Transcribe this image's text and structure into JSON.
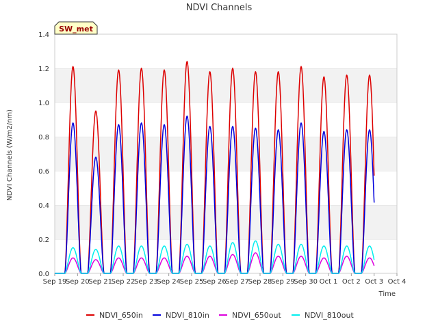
{
  "chart_data": {
    "type": "line",
    "title": "NDVI Channels",
    "xlabel": "Time",
    "ylabel": "NDVI Channels (W/m2/nm)",
    "ylim": [
      0.0,
      1.4
    ],
    "xlim": [
      0,
      15
    ],
    "grid": "horizontal bands",
    "station_label": "SW_met",
    "x_ticks": [
      "Sep 19",
      "Sep 20",
      "Sep 21",
      "Sep 22",
      "Sep 23",
      "Sep 24",
      "Sep 25",
      "Sep 26",
      "Sep 27",
      "Sep 28",
      "Sep 29",
      "Sep 30",
      "Oct 1",
      "Oct 2",
      "Oct 3",
      "Oct 4"
    ],
    "y_ticks": [
      "0.0",
      "0.2",
      "0.4",
      "0.6",
      "0.8",
      "1.0",
      "1.2",
      "1.4"
    ],
    "y_tick_values": [
      0.0,
      0.2,
      0.4,
      0.6,
      0.8,
      1.0,
      1.2,
      1.4
    ],
    "day_centers": [
      0.8,
      1.8,
      2.8,
      3.8,
      4.8,
      5.8,
      6.8,
      7.8,
      8.8,
      9.8,
      10.8,
      11.8,
      12.8,
      13.8
    ],
    "legend_position": "bottom",
    "series": [
      {
        "name": "NDVI_650in",
        "color": "#dd0000",
        "daily_peaks": [
          1.21,
          0.95,
          1.19,
          1.2,
          1.19,
          1.24,
          1.18,
          1.2,
          1.18,
          1.18,
          1.21,
          1.15,
          1.16,
          1.16
        ]
      },
      {
        "name": "NDVI_810in",
        "color": "#0000dd",
        "daily_peaks": [
          0.88,
          0.68,
          0.87,
          0.88,
          0.87,
          0.92,
          0.86,
          0.86,
          0.85,
          0.84,
          0.88,
          0.83,
          0.84,
          0.84
        ]
      },
      {
        "name": "NDVI_650out",
        "color": "#dd00dd",
        "daily_peaks": [
          0.09,
          0.08,
          0.09,
          0.09,
          0.09,
          0.1,
          0.1,
          0.11,
          0.12,
          0.1,
          0.1,
          0.09,
          0.1,
          0.09
        ]
      },
      {
        "name": "NDVI_810out",
        "color": "#00eeee",
        "daily_peaks": [
          0.15,
          0.14,
          0.16,
          0.16,
          0.16,
          0.17,
          0.16,
          0.18,
          0.19,
          0.17,
          0.17,
          0.16,
          0.16,
          0.16
        ]
      }
    ]
  }
}
